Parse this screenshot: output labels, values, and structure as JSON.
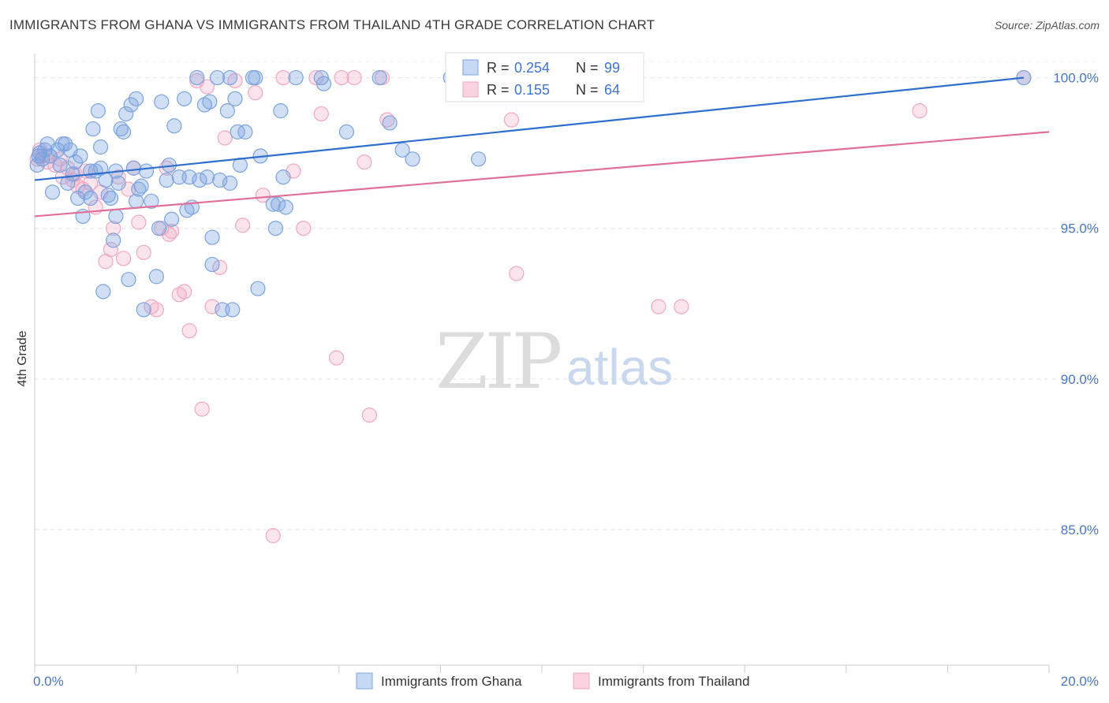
{
  "header": {
    "title": "IMMIGRANTS FROM GHANA VS IMMIGRANTS FROM THAILAND 4TH GRADE CORRELATION CHART",
    "source": "Source: ZipAtlas.com"
  },
  "watermark": {
    "zip": "ZIP",
    "atlas": "atlas"
  },
  "chart_data": {
    "type": "scatter",
    "title": "IMMIGRANTS FROM GHANA VS IMMIGRANTS FROM THAILAND 4TH GRADE CORRELATION CHART",
    "xlabel": "",
    "ylabel": "4th Grade",
    "xlim": [
      0,
      20
    ],
    "ylim": [
      80.5,
      100.8
    ],
    "x_tick_labels": [
      "0.0%",
      "20.0%"
    ],
    "y_ticks": [
      85,
      90,
      95,
      100
    ],
    "y_tick_labels": [
      "85.0%",
      "90.0%",
      "95.0%",
      "100.0%"
    ],
    "grid": true,
    "legend_placement": "top-center",
    "series": [
      {
        "name": "Immigrants from Ghana",
        "color": "#7ba3e0",
        "line_color": "#2e6fce",
        "r_label": "R =",
        "r_value": "0.254",
        "n_label": "N =",
        "n_value": "99",
        "trend": [
          [
            0,
            96.6
          ],
          [
            19.5,
            100.0
          ]
        ],
        "points": [
          [
            0.05,
            97.1
          ],
          [
            0.08,
            97.4
          ],
          [
            0.1,
            97.5
          ],
          [
            0.15,
            97.3
          ],
          [
            0.2,
            97.6
          ],
          [
            0.25,
            97.8
          ],
          [
            0.3,
            97.4
          ],
          [
            0.35,
            96.2
          ],
          [
            0.45,
            97.6
          ],
          [
            0.5,
            97.1
          ],
          [
            0.55,
            97.8
          ],
          [
            0.6,
            97.8
          ],
          [
            0.65,
            96.5
          ],
          [
            0.7,
            97.6
          ],
          [
            0.75,
            96.8
          ],
          [
            0.8,
            97.2
          ],
          [
            0.85,
            96.0
          ],
          [
            0.9,
            97.4
          ],
          [
            0.95,
            95.4
          ],
          [
            1.0,
            96.2
          ],
          [
            1.1,
            96.9
          ],
          [
            1.1,
            96.0
          ],
          [
            1.15,
            98.3
          ],
          [
            1.2,
            96.9
          ],
          [
            1.25,
            98.9
          ],
          [
            1.3,
            97.0
          ],
          [
            1.3,
            97.7
          ],
          [
            1.35,
            92.9
          ],
          [
            1.4,
            96.6
          ],
          [
            1.45,
            96.1
          ],
          [
            1.5,
            96.0
          ],
          [
            1.55,
            94.6
          ],
          [
            1.6,
            95.4
          ],
          [
            1.6,
            96.9
          ],
          [
            1.65,
            96.5
          ],
          [
            1.7,
            98.3
          ],
          [
            1.75,
            98.2
          ],
          [
            1.8,
            98.8
          ],
          [
            1.85,
            93.3
          ],
          [
            1.9,
            99.1
          ],
          [
            1.95,
            97.0
          ],
          [
            2.0,
            95.9
          ],
          [
            2.0,
            99.3
          ],
          [
            2.05,
            96.3
          ],
          [
            2.1,
            96.4
          ],
          [
            2.15,
            92.3
          ],
          [
            2.2,
            96.9
          ],
          [
            2.3,
            95.9
          ],
          [
            2.4,
            93.4
          ],
          [
            2.45,
            95.0
          ],
          [
            2.5,
            99.2
          ],
          [
            2.6,
            96.6
          ],
          [
            2.65,
            97.1
          ],
          [
            2.7,
            95.3
          ],
          [
            2.75,
            98.4
          ],
          [
            2.85,
            96.7
          ],
          [
            2.95,
            99.3
          ],
          [
            3.0,
            95.6
          ],
          [
            3.05,
            96.7
          ],
          [
            3.1,
            95.7
          ],
          [
            3.2,
            100.0
          ],
          [
            3.25,
            96.6
          ],
          [
            3.35,
            99.1
          ],
          [
            3.4,
            96.7
          ],
          [
            3.45,
            99.2
          ],
          [
            3.5,
            94.7
          ],
          [
            3.5,
            93.8
          ],
          [
            3.6,
            100.0
          ],
          [
            3.65,
            96.6
          ],
          [
            3.7,
            92.3
          ],
          [
            3.8,
            98.9
          ],
          [
            3.85,
            100.0
          ],
          [
            3.85,
            96.5
          ],
          [
            3.9,
            92.3
          ],
          [
            3.95,
            99.3
          ],
          [
            4.0,
            98.2
          ],
          [
            4.05,
            97.1
          ],
          [
            4.15,
            98.2
          ],
          [
            4.3,
            100.0
          ],
          [
            4.35,
            100.0
          ],
          [
            4.4,
            93.0
          ],
          [
            4.45,
            97.4
          ],
          [
            4.7,
            95.8
          ],
          [
            4.75,
            95.0
          ],
          [
            4.8,
            95.8
          ],
          [
            4.85,
            98.9
          ],
          [
            4.9,
            96.7
          ],
          [
            4.95,
            95.7
          ],
          [
            5.15,
            100.0
          ],
          [
            5.65,
            100.0
          ],
          [
            5.7,
            99.8
          ],
          [
            6.15,
            98.2
          ],
          [
            6.8,
            100.0
          ],
          [
            7.0,
            98.5
          ],
          [
            7.25,
            97.6
          ],
          [
            7.45,
            97.3
          ],
          [
            8.2,
            100.0
          ],
          [
            8.75,
            97.3
          ],
          [
            9.8,
            100.0
          ],
          [
            19.5,
            100.0
          ]
        ]
      },
      {
        "name": "Immigrants from Thailand",
        "color": "#f2a7c0",
        "line_color": "#e0709a",
        "r_label": "R =",
        "r_value": "0.155",
        "n_label": "N =",
        "n_value": "64",
        "trend": [
          [
            0,
            95.4
          ],
          [
            20,
            98.2
          ]
        ],
        "points": [
          [
            0.05,
            97.3
          ],
          [
            0.1,
            97.6
          ],
          [
            0.15,
            97.4
          ],
          [
            0.25,
            97.2
          ],
          [
            0.3,
            97.4
          ],
          [
            0.4,
            97.1
          ],
          [
            0.5,
            97.3
          ],
          [
            0.55,
            96.7
          ],
          [
            0.65,
            97.0
          ],
          [
            0.75,
            96.6
          ],
          [
            0.8,
            96.8
          ],
          [
            0.85,
            96.4
          ],
          [
            0.95,
            96.3
          ],
          [
            1.0,
            96.9
          ],
          [
            1.1,
            96.5
          ],
          [
            1.2,
            95.7
          ],
          [
            1.3,
            96.2
          ],
          [
            1.4,
            93.9
          ],
          [
            1.5,
            94.3
          ],
          [
            1.55,
            95.0
          ],
          [
            1.65,
            96.7
          ],
          [
            1.75,
            94.0
          ],
          [
            1.85,
            96.3
          ],
          [
            1.95,
            97.0
          ],
          [
            2.05,
            95.2
          ],
          [
            2.15,
            94.2
          ],
          [
            2.3,
            92.4
          ],
          [
            2.4,
            92.3
          ],
          [
            2.5,
            95.0
          ],
          [
            2.6,
            97.0
          ],
          [
            2.65,
            94.8
          ],
          [
            2.7,
            94.9
          ],
          [
            2.85,
            92.8
          ],
          [
            2.95,
            92.9
          ],
          [
            3.05,
            91.6
          ],
          [
            3.2,
            99.9
          ],
          [
            3.3,
            89.0
          ],
          [
            3.4,
            99.7
          ],
          [
            3.5,
            92.4
          ],
          [
            3.65,
            93.7
          ],
          [
            3.75,
            98.0
          ],
          [
            3.95,
            99.9
          ],
          [
            4.1,
            95.1
          ],
          [
            4.35,
            99.5
          ],
          [
            4.5,
            96.1
          ],
          [
            4.7,
            84.8
          ],
          [
            4.9,
            100.0
          ],
          [
            5.1,
            96.9
          ],
          [
            5.3,
            95.0
          ],
          [
            5.55,
            100.0
          ],
          [
            5.65,
            98.8
          ],
          [
            5.95,
            90.7
          ],
          [
            6.05,
            100.0
          ],
          [
            6.3,
            100.0
          ],
          [
            6.5,
            97.2
          ],
          [
            6.6,
            88.8
          ],
          [
            6.85,
            100.0
          ],
          [
            6.95,
            98.6
          ],
          [
            9.4,
            98.6
          ],
          [
            9.5,
            93.5
          ],
          [
            12.3,
            92.4
          ],
          [
            12.75,
            92.4
          ],
          [
            17.45,
            98.9
          ],
          [
            19.5,
            100.0
          ]
        ]
      }
    ]
  },
  "legend_bottom": [
    "Immigrants from Ghana",
    "Immigrants from Thailand"
  ]
}
